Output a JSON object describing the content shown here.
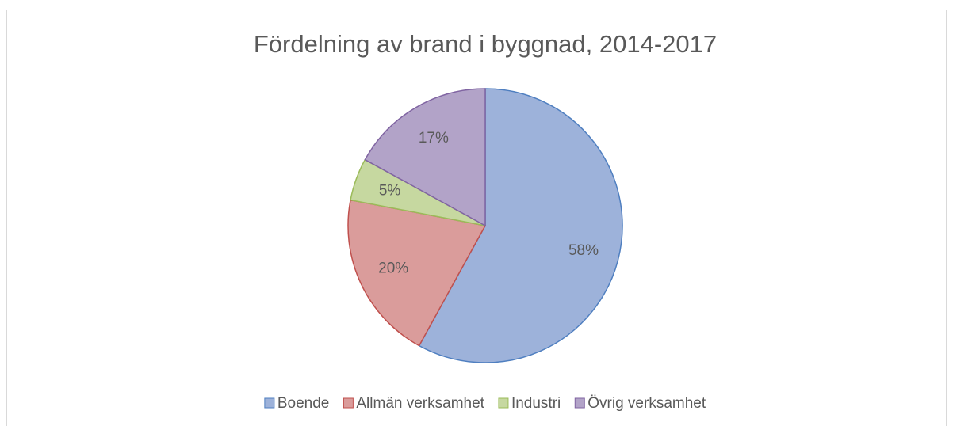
{
  "chart_data": {
    "type": "pie",
    "title": "Fördelning av brand i byggnad, 2014-2017",
    "categories": [
      "Boende",
      "Allmän verksamhet",
      "Industri",
      "Övrig verksamhet"
    ],
    "values": [
      58,
      20,
      5,
      17
    ],
    "value_labels": [
      "58%",
      "20%",
      "5%",
      "17%"
    ],
    "colors": [
      "#9db2da",
      "#da9c9b",
      "#c6d8a0",
      "#b2a3c8"
    ],
    "edge_colors": [
      "#4f7fc0",
      "#c0504d",
      "#9bbb59",
      "#8064a2"
    ],
    "legend": "bottom"
  }
}
